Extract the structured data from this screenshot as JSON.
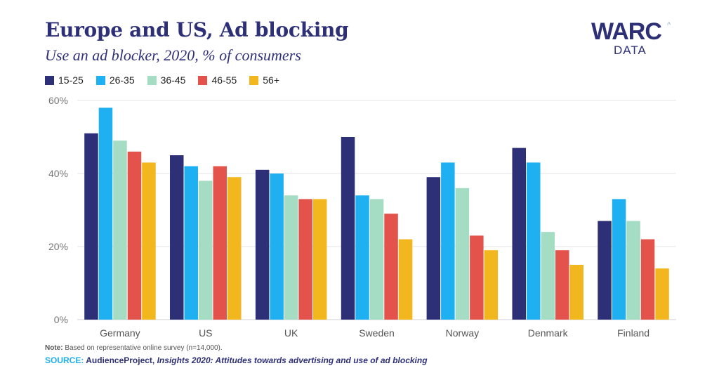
{
  "header": {
    "title": "Europe and US, Ad blocking",
    "subtitle": "Use an ad blocker, 2020, % of consumers"
  },
  "logo": {
    "main": "WARC",
    "sub": "DATA",
    "caret": "^"
  },
  "footer": {
    "note_label": "Note:",
    "note_text": " Based on representative online survey (n=14,000).",
    "source_label": "SOURCE:",
    "source_name": " AudienceProject,",
    "source_title": " Insights 2020: Attitudes towards advertising and use of ad blocking"
  },
  "colors": {
    "title": "#2e3077",
    "grid": "#e3e3e8",
    "axis_text": "#777777"
  },
  "chart_data": {
    "type": "bar",
    "categories": [
      "Germany",
      "US",
      "UK",
      "Sweden",
      "Norway",
      "Denmark",
      "Finland"
    ],
    "series": [
      {
        "name": "15-25",
        "color": "#2e3077",
        "values": [
          51,
          45,
          41,
          50,
          39,
          47,
          27
        ]
      },
      {
        "name": "26-35",
        "color": "#1eb0f0",
        "values": [
          58,
          42,
          40,
          34,
          43,
          43,
          33
        ]
      },
      {
        "name": "36-45",
        "color": "#a4dcc4",
        "values": [
          49,
          38,
          34,
          33,
          36,
          24,
          27
        ]
      },
      {
        "name": "46-55",
        "color": "#e4534b",
        "values": [
          46,
          42,
          33,
          29,
          23,
          19,
          22
        ]
      },
      {
        "name": "56+",
        "color": "#f2b71f",
        "values": [
          43,
          39,
          33,
          22,
          19,
          15,
          14
        ]
      }
    ],
    "yticks": [
      0,
      20,
      40,
      60
    ],
    "ytick_labels": [
      "0%",
      "20%",
      "40%",
      "60%"
    ],
    "ylim": [
      0,
      60
    ],
    "title": "Europe and US, Ad blocking",
    "subtitle": "Use an ad blocker, 2020, % of consumers",
    "xlabel": "",
    "ylabel": "",
    "grid": true,
    "legend_position": "top-left"
  }
}
